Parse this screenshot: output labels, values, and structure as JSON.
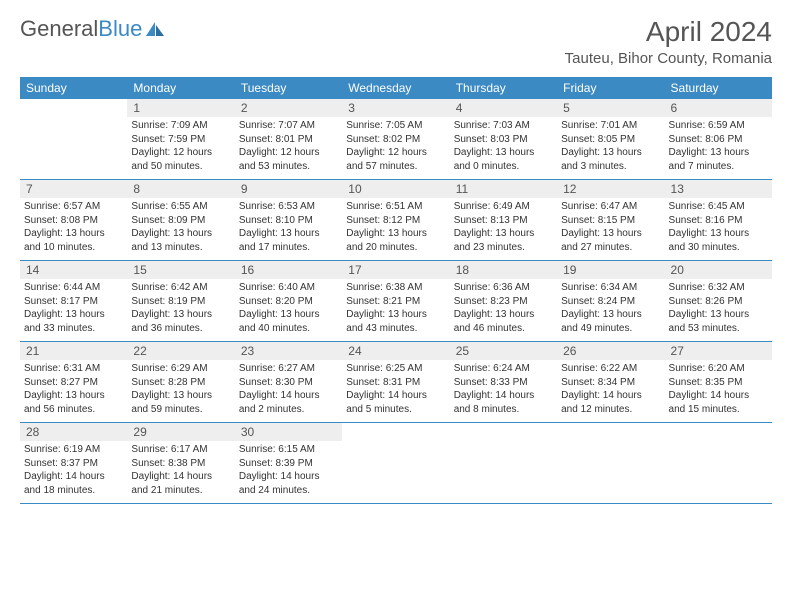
{
  "logo": {
    "text_gray": "General",
    "text_blue": "Blue"
  },
  "title": "April 2024",
  "location": "Tauteu, Bihor County, Romania",
  "colors": {
    "header_bg": "#3b8ac4",
    "header_text": "#ffffff",
    "daynum_bg": "#eeeeee",
    "text": "#333333",
    "border": "#3b8ac4"
  },
  "day_headers": [
    "Sunday",
    "Monday",
    "Tuesday",
    "Wednesday",
    "Thursday",
    "Friday",
    "Saturday"
  ],
  "weeks": [
    [
      {
        "num": "",
        "lines": []
      },
      {
        "num": "1",
        "lines": [
          "Sunrise: 7:09 AM",
          "Sunset: 7:59 PM",
          "Daylight: 12 hours",
          "and 50 minutes."
        ]
      },
      {
        "num": "2",
        "lines": [
          "Sunrise: 7:07 AM",
          "Sunset: 8:01 PM",
          "Daylight: 12 hours",
          "and 53 minutes."
        ]
      },
      {
        "num": "3",
        "lines": [
          "Sunrise: 7:05 AM",
          "Sunset: 8:02 PM",
          "Daylight: 12 hours",
          "and 57 minutes."
        ]
      },
      {
        "num": "4",
        "lines": [
          "Sunrise: 7:03 AM",
          "Sunset: 8:03 PM",
          "Daylight: 13 hours",
          "and 0 minutes."
        ]
      },
      {
        "num": "5",
        "lines": [
          "Sunrise: 7:01 AM",
          "Sunset: 8:05 PM",
          "Daylight: 13 hours",
          "and 3 minutes."
        ]
      },
      {
        "num": "6",
        "lines": [
          "Sunrise: 6:59 AM",
          "Sunset: 8:06 PM",
          "Daylight: 13 hours",
          "and 7 minutes."
        ]
      }
    ],
    [
      {
        "num": "7",
        "lines": [
          "Sunrise: 6:57 AM",
          "Sunset: 8:08 PM",
          "Daylight: 13 hours",
          "and 10 minutes."
        ]
      },
      {
        "num": "8",
        "lines": [
          "Sunrise: 6:55 AM",
          "Sunset: 8:09 PM",
          "Daylight: 13 hours",
          "and 13 minutes."
        ]
      },
      {
        "num": "9",
        "lines": [
          "Sunrise: 6:53 AM",
          "Sunset: 8:10 PM",
          "Daylight: 13 hours",
          "and 17 minutes."
        ]
      },
      {
        "num": "10",
        "lines": [
          "Sunrise: 6:51 AM",
          "Sunset: 8:12 PM",
          "Daylight: 13 hours",
          "and 20 minutes."
        ]
      },
      {
        "num": "11",
        "lines": [
          "Sunrise: 6:49 AM",
          "Sunset: 8:13 PM",
          "Daylight: 13 hours",
          "and 23 minutes."
        ]
      },
      {
        "num": "12",
        "lines": [
          "Sunrise: 6:47 AM",
          "Sunset: 8:15 PM",
          "Daylight: 13 hours",
          "and 27 minutes."
        ]
      },
      {
        "num": "13",
        "lines": [
          "Sunrise: 6:45 AM",
          "Sunset: 8:16 PM",
          "Daylight: 13 hours",
          "and 30 minutes."
        ]
      }
    ],
    [
      {
        "num": "14",
        "lines": [
          "Sunrise: 6:44 AM",
          "Sunset: 8:17 PM",
          "Daylight: 13 hours",
          "and 33 minutes."
        ]
      },
      {
        "num": "15",
        "lines": [
          "Sunrise: 6:42 AM",
          "Sunset: 8:19 PM",
          "Daylight: 13 hours",
          "and 36 minutes."
        ]
      },
      {
        "num": "16",
        "lines": [
          "Sunrise: 6:40 AM",
          "Sunset: 8:20 PM",
          "Daylight: 13 hours",
          "and 40 minutes."
        ]
      },
      {
        "num": "17",
        "lines": [
          "Sunrise: 6:38 AM",
          "Sunset: 8:21 PM",
          "Daylight: 13 hours",
          "and 43 minutes."
        ]
      },
      {
        "num": "18",
        "lines": [
          "Sunrise: 6:36 AM",
          "Sunset: 8:23 PM",
          "Daylight: 13 hours",
          "and 46 minutes."
        ]
      },
      {
        "num": "19",
        "lines": [
          "Sunrise: 6:34 AM",
          "Sunset: 8:24 PM",
          "Daylight: 13 hours",
          "and 49 minutes."
        ]
      },
      {
        "num": "20",
        "lines": [
          "Sunrise: 6:32 AM",
          "Sunset: 8:26 PM",
          "Daylight: 13 hours",
          "and 53 minutes."
        ]
      }
    ],
    [
      {
        "num": "21",
        "lines": [
          "Sunrise: 6:31 AM",
          "Sunset: 8:27 PM",
          "Daylight: 13 hours",
          "and 56 minutes."
        ]
      },
      {
        "num": "22",
        "lines": [
          "Sunrise: 6:29 AM",
          "Sunset: 8:28 PM",
          "Daylight: 13 hours",
          "and 59 minutes."
        ]
      },
      {
        "num": "23",
        "lines": [
          "Sunrise: 6:27 AM",
          "Sunset: 8:30 PM",
          "Daylight: 14 hours",
          "and 2 minutes."
        ]
      },
      {
        "num": "24",
        "lines": [
          "Sunrise: 6:25 AM",
          "Sunset: 8:31 PM",
          "Daylight: 14 hours",
          "and 5 minutes."
        ]
      },
      {
        "num": "25",
        "lines": [
          "Sunrise: 6:24 AM",
          "Sunset: 8:33 PM",
          "Daylight: 14 hours",
          "and 8 minutes."
        ]
      },
      {
        "num": "26",
        "lines": [
          "Sunrise: 6:22 AM",
          "Sunset: 8:34 PM",
          "Daylight: 14 hours",
          "and 12 minutes."
        ]
      },
      {
        "num": "27",
        "lines": [
          "Sunrise: 6:20 AM",
          "Sunset: 8:35 PM",
          "Daylight: 14 hours",
          "and 15 minutes."
        ]
      }
    ],
    [
      {
        "num": "28",
        "lines": [
          "Sunrise: 6:19 AM",
          "Sunset: 8:37 PM",
          "Daylight: 14 hours",
          "and 18 minutes."
        ]
      },
      {
        "num": "29",
        "lines": [
          "Sunrise: 6:17 AM",
          "Sunset: 8:38 PM",
          "Daylight: 14 hours",
          "and 21 minutes."
        ]
      },
      {
        "num": "30",
        "lines": [
          "Sunrise: 6:15 AM",
          "Sunset: 8:39 PM",
          "Daylight: 14 hours",
          "and 24 minutes."
        ]
      },
      {
        "num": "",
        "lines": []
      },
      {
        "num": "",
        "lines": []
      },
      {
        "num": "",
        "lines": []
      },
      {
        "num": "",
        "lines": []
      }
    ]
  ]
}
